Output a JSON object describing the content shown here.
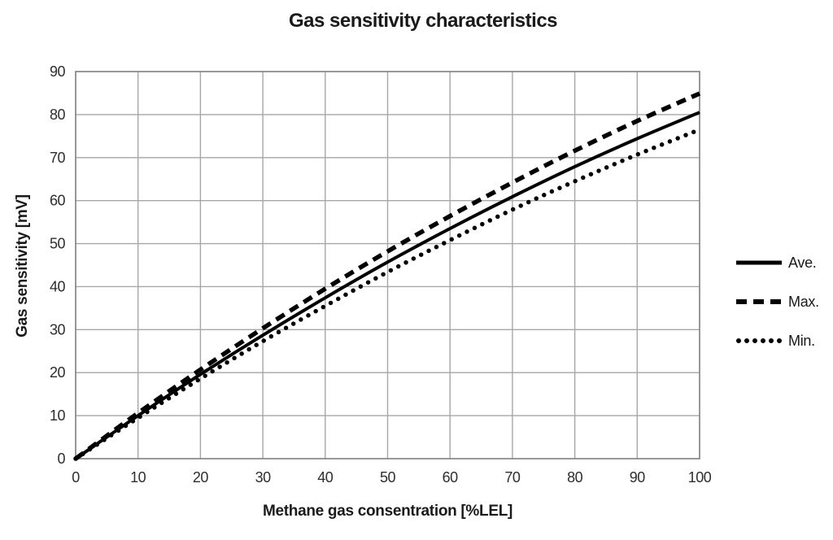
{
  "title": "Gas sensitivity characteristics",
  "chart_data": {
    "type": "line",
    "title": "Gas sensitivity characteristics",
    "xlabel": "Methane gas consentration [%LEL]",
    "ylabel": "Gas sensitivity [mV]",
    "xlim": [
      0,
      100
    ],
    "ylim": [
      0,
      90
    ],
    "xticks": [
      0,
      10,
      20,
      30,
      40,
      50,
      60,
      70,
      80,
      90,
      100
    ],
    "yticks": [
      0,
      10,
      20,
      30,
      40,
      50,
      60,
      70,
      80,
      90
    ],
    "grid": true,
    "legend_position": "right",
    "x": [
      0,
      10,
      20,
      30,
      40,
      50,
      60,
      70,
      80,
      90,
      100
    ],
    "series": [
      {
        "name": "Ave.",
        "style": "solid",
        "values": [
          0,
          10.0,
          19.6,
          28.7,
          37.4,
          45.7,
          53.5,
          60.9,
          67.9,
          74.4,
          80.5
        ]
      },
      {
        "name": "Max.",
        "style": "dashed",
        "values": [
          0,
          10.6,
          20.7,
          30.3,
          39.5,
          48.2,
          56.4,
          64.2,
          71.6,
          78.5,
          84.9
        ]
      },
      {
        "name": "Min.",
        "style": "dotted",
        "values": [
          0,
          9.5,
          18.6,
          27.3,
          35.5,
          43.4,
          50.8,
          57.9,
          64.5,
          70.7,
          76.5
        ]
      }
    ],
    "colors": {
      "line": "#000000",
      "grid": "#a6a6a6",
      "frame": "#7f7f7f",
      "text": "#1a1a1a"
    }
  }
}
